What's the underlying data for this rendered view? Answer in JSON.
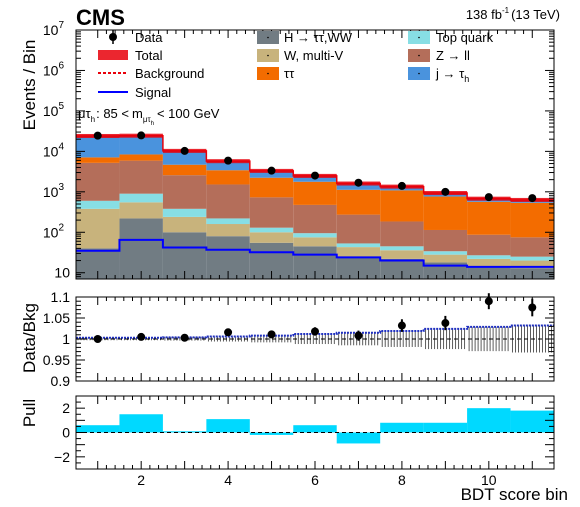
{
  "header": {
    "experiment": "CMS",
    "lumi": "138 fb",
    "lumi_exp": "-1",
    "energy": "(13 TeV)"
  },
  "category": {
    "prefix": "μτ",
    "prefix_sub": "h",
    "range_lo": ": 85 <",
    "mvar": "m",
    "mvar_sub": "μτ",
    "mvar_subsub": "h",
    "range_hi": "< 100 GeV"
  },
  "legend": {
    "left": [
      {
        "label": "Data",
        "kind": "data"
      },
      {
        "label": "Total",
        "kind": "total",
        "color": "#e8000b"
      },
      {
        "label": "Background",
        "kind": "dotted",
        "color": "#e8000b"
      },
      {
        "label": "Signal",
        "kind": "line",
        "color": "#0000ff"
      }
    ],
    "mid": [
      {
        "label": "H → ττ,WW",
        "color": "#717c83"
      },
      {
        "label": "W, multi-V",
        "color": "#c8b37c"
      },
      {
        "label": "ττ",
        "color": "#f36c00"
      }
    ],
    "right": [
      {
        "label": "Top quark",
        "color": "#87dee4"
      },
      {
        "label": "Z → ll",
        "color": "#b46e5a"
      },
      {
        "label": "j → τ",
        "sub": "h",
        "color": "#4a93dd"
      }
    ]
  },
  "colors": {
    "higgs": "#717c83",
    "wmultiv": "#c8b37c",
    "topquark": "#87dee4",
    "zll": "#b46e5a",
    "tautau": "#f36c00",
    "fakes": "#4a93dd",
    "total": "#e8000b",
    "signal": "#0000ff",
    "pull": "#00d9ff"
  },
  "chart_data": {
    "type": "stacked_histogram",
    "xlabel": "BDT score bin",
    "bins": [
      1,
      2,
      3,
      4,
      5,
      6,
      7,
      8,
      9,
      10,
      11
    ],
    "x_ticks": [
      2,
      4,
      6,
      8,
      10
    ],
    "xlim": [
      0.5,
      11.5
    ],
    "main": {
      "ylabel": "Events / Bin",
      "yscale": "log",
      "ylim": [
        7,
        10000000
      ],
      "y_ticks": [
        {
          "v": 10,
          "label": "10"
        },
        {
          "v": 100,
          "base": "10",
          "exp": "2"
        },
        {
          "v": 1000,
          "base": "10",
          "exp": "3"
        },
        {
          "v": 10000,
          "base": "10",
          "exp": "4"
        },
        {
          "v": 100000,
          "base": "10",
          "exp": "5"
        },
        {
          "v": 1000000,
          "base": "10",
          "exp": "6"
        },
        {
          "v": 10000000,
          "base": "10",
          "exp": "7"
        }
      ],
      "stack": [
        {
          "name": "H → ττ,WW",
          "color_key": "higgs",
          "values": [
            40,
            220,
            100,
            80,
            55,
            45,
            25,
            22,
            18,
            14,
            13
          ]
        },
        {
          "name": "W, multi-V",
          "color_key": "wmultiv",
          "values": [
            340,
            330,
            140,
            80,
            45,
            30,
            18,
            14,
            10,
            8,
            7
          ]
        },
        {
          "name": "Top quark",
          "color_key": "topquark",
          "values": [
            220,
            350,
            140,
            60,
            30,
            20,
            10,
            9,
            6,
            5,
            5
          ]
        },
        {
          "name": "Z → ll",
          "color_key": "zll",
          "values": [
            4600,
            5000,
            2200,
            1300,
            600,
            380,
            220,
            140,
            80,
            60,
            50
          ]
        },
        {
          "name": "ττ",
          "color_key": "tautau",
          "values": [
            1900,
            2500,
            2100,
            1900,
            1500,
            1300,
            850,
            900,
            650,
            480,
            460
          ]
        },
        {
          "name": "j → τh",
          "color_key": "fakes",
          "values": [
            17000,
            16000,
            5600,
            2300,
            1060,
            700,
            480,
            260,
            170,
            110,
            95
          ]
        }
      ],
      "total": [
        24000,
        24400,
        10280,
        5720,
        3290,
        2475,
        1603,
        1345,
        934,
        677,
        630
      ],
      "signal": [
        35,
        65,
        42,
        37,
        32,
        28,
        24,
        20,
        15,
        14,
        14
      ],
      "data": [
        24500,
        24800,
        10250,
        5900,
        3330,
        2520,
        1680,
        1400,
        1000,
        740,
        700
      ]
    },
    "ratio": {
      "ylabel": "Data/Bkg",
      "ylim": [
        0.9,
        1.1
      ],
      "y_ticks": [
        {
          "v": 0.9,
          "label": "0.9"
        },
        {
          "v": 0.95,
          "label": "0.95"
        },
        {
          "v": 1.0,
          "label": "1"
        },
        {
          "v": 1.05,
          "label": "1.05"
        },
        {
          "v": 1.1,
          "label": "1.1"
        }
      ],
      "values": [
        1.0,
        1.005,
        1.003,
        1.016,
        1.011,
        1.018,
        1.008,
        1.032,
        1.038,
        1.09,
        1.075
      ],
      "errors": [
        0.003,
        0.003,
        0.004,
        0.006,
        0.008,
        0.01,
        0.012,
        0.015,
        0.017,
        0.019,
        0.021
      ],
      "band_halfwidth": [
        0.003,
        0.003,
        0.004,
        0.006,
        0.008,
        0.012,
        0.015,
        0.019,
        0.024,
        0.029,
        0.032
      ]
    },
    "pull": {
      "ylabel": "Pull",
      "ylim": [
        -3,
        3
      ],
      "y_ticks": [
        {
          "v": -2,
          "label": "−2"
        },
        {
          "v": 0,
          "label": "0"
        },
        {
          "v": 2,
          "label": "2"
        }
      ],
      "values": [
        0.6,
        1.5,
        0.1,
        1.1,
        -0.2,
        0.6,
        -0.9,
        0.8,
        0.8,
        2.0,
        1.8
      ]
    }
  }
}
